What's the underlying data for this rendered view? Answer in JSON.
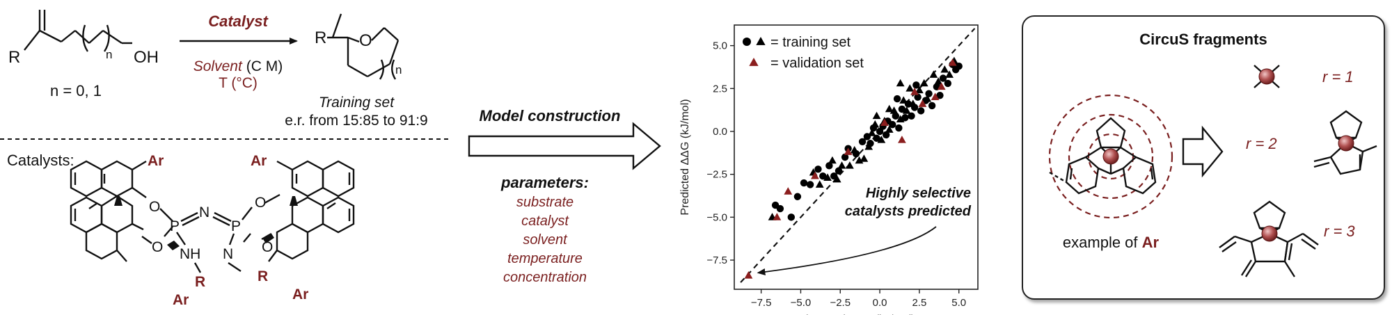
{
  "reaction": {
    "substrate_R": "R",
    "substrate_OH": "OH",
    "subscript_n": "n",
    "n_values": "n = 0, 1",
    "catalyst_label": "Catalyst",
    "solvent_word": "Solvent",
    "solvent_conc": "(C M)",
    "temperature": "T (°C)",
    "product_R": "R",
    "product_O": "O",
    "training_set_title": "Training set",
    "training_set_er": "e.r. from 15:85 to 91:9"
  },
  "catalysts": {
    "label": "Catalysts:",
    "atoms": {
      "Ar": "Ar",
      "O": "O",
      "P": "P",
      "N": "N",
      "NH": "NH",
      "R": "R"
    }
  },
  "model": {
    "title": "Model construction",
    "parameters_title": "parameters:",
    "parameters": [
      "substrate",
      "catalyst",
      "solvent",
      "temperature",
      "concentration"
    ]
  },
  "chart_data": {
    "type": "scatter",
    "xlabel": "Observed ΔΔG (kJ/mol)",
    "ylabel": "Predicted ΔΔG (kJ/mol)",
    "xlim": [
      -9.2,
      6.2
    ],
    "ylim": [
      -9.2,
      6.2
    ],
    "x_ticks": [
      -7.5,
      -5.0,
      -2.5,
      0.0,
      2.5,
      5.0
    ],
    "y_ticks": [
      -7.5,
      -5.0,
      -2.5,
      0.0,
      2.5,
      5.0
    ],
    "tick_labels": [
      "−7.5",
      "−5.0",
      "−2.5",
      "0.0",
      "2.5",
      "5.0"
    ],
    "legend": {
      "placement": "top-left",
      "training": "= training set",
      "validation": "= validation set"
    },
    "annotation": [
      "Highly selective",
      "catalysts predicted"
    ],
    "colors": {
      "training": "#000000",
      "validation": "#8b1e1e",
      "diagonal": "#111111"
    },
    "series": [
      {
        "name": "training set",
        "marker": "circle",
        "points": [
          [
            -6.6,
            -4.3
          ],
          [
            -6.3,
            -4.5
          ],
          [
            -5.6,
            -5.0
          ],
          [
            -5.2,
            -3.8
          ],
          [
            -4.8,
            -3.0
          ],
          [
            -4.4,
            -3.1
          ],
          [
            -3.9,
            -2.2
          ],
          [
            -3.6,
            -2.6
          ],
          [
            -3.2,
            -2.0
          ],
          [
            -2.9,
            -2.6
          ],
          [
            -2.6,
            -2.3
          ],
          [
            -2.2,
            -1.5
          ],
          [
            -2.0,
            -1.0
          ],
          [
            -1.5,
            -1.3
          ],
          [
            -1.1,
            -0.6
          ],
          [
            -0.8,
            -0.3
          ],
          [
            -0.6,
            -0.7
          ],
          [
            -0.4,
            0.2
          ],
          [
            -0.2,
            -0.4
          ],
          [
            0.0,
            0.0
          ],
          [
            0.2,
            0.3
          ],
          [
            0.4,
            -0.2
          ],
          [
            0.5,
            0.6
          ],
          [
            0.8,
            0.4
          ],
          [
            1.0,
            0.9
          ],
          [
            1.2,
            0.2
          ],
          [
            1.4,
            1.3
          ],
          [
            1.6,
            0.8
          ],
          [
            1.8,
            1.6
          ],
          [
            2.0,
            0.9
          ],
          [
            2.2,
            1.4
          ],
          [
            2.4,
            2.0
          ],
          [
            2.6,
            1.2
          ],
          [
            2.9,
            1.8
          ],
          [
            3.1,
            2.2
          ],
          [
            3.3,
            1.5
          ],
          [
            3.6,
            2.6
          ],
          [
            3.8,
            2.1
          ],
          [
            4.0,
            3.1
          ],
          [
            4.3,
            2.8
          ],
          [
            4.6,
            3.9
          ],
          [
            4.8,
            3.6
          ],
          [
            5.0,
            3.8
          ],
          [
            2.3,
            2.7
          ],
          [
            1.1,
            1.9
          ]
        ]
      },
      {
        "name": "training set",
        "marker": "triangle",
        "points": [
          [
            -6.8,
            -5.0
          ],
          [
            -4.2,
            -2.4
          ],
          [
            -3.8,
            -3.1
          ],
          [
            -3.3,
            -2.7
          ],
          [
            -3.0,
            -1.7
          ],
          [
            -2.7,
            -2.8
          ],
          [
            -2.4,
            -2.0
          ],
          [
            -1.9,
            -2.0
          ],
          [
            -1.6,
            -1.1
          ],
          [
            -1.3,
            -1.7
          ],
          [
            -1.0,
            -1.6
          ],
          [
            -0.7,
            -0.9
          ],
          [
            -0.5,
            -0.1
          ],
          [
            -0.3,
            0.4
          ],
          [
            0.1,
            -0.5
          ],
          [
            0.3,
            0.6
          ],
          [
            0.6,
            0.1
          ],
          [
            0.9,
            1.2
          ],
          [
            1.3,
            0.7
          ],
          [
            1.5,
            1.8
          ],
          [
            1.7,
            1.2
          ],
          [
            1.9,
            2.5
          ],
          [
            2.1,
            1.6
          ],
          [
            2.5,
            2.4
          ],
          [
            2.8,
            2.8
          ],
          [
            3.0,
            1.9
          ],
          [
            3.4,
            3.3
          ],
          [
            3.7,
            2.9
          ],
          [
            4.1,
            3.6
          ],
          [
            4.4,
            3.3
          ],
          [
            4.7,
            4.1
          ],
          [
            1.3,
            2.8
          ],
          [
            0.6,
            1.3
          ],
          [
            -0.2,
            0.9
          ]
        ]
      },
      {
        "name": "validation set",
        "marker": "triangle",
        "points": [
          [
            -8.3,
            -8.4
          ],
          [
            -6.5,
            -5.0
          ],
          [
            -5.8,
            -3.5
          ],
          [
            -4.1,
            -2.6
          ],
          [
            -2.0,
            -1.2
          ],
          [
            0.3,
            0.5
          ],
          [
            1.4,
            -0.5
          ],
          [
            2.2,
            2.3
          ],
          [
            3.5,
            2.0
          ],
          [
            3.9,
            2.6
          ],
          [
            4.6,
            4.0
          ],
          [
            2.7,
            1.6
          ]
        ]
      }
    ]
  },
  "circus": {
    "title": "CircuS fragments",
    "example_prefix": "example of ",
    "example_ar": "Ar",
    "radii": [
      "r = 1",
      "r = 2",
      "r = 3"
    ]
  }
}
